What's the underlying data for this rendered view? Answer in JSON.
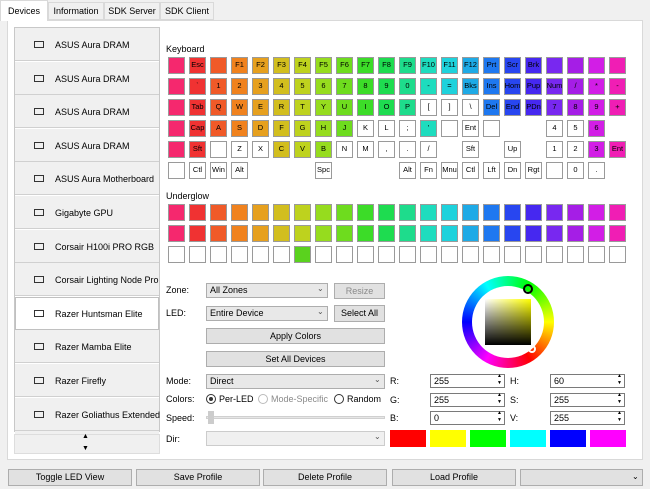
{
  "tabs": [
    "Devices",
    "Information",
    "SDK Server",
    "SDK Client"
  ],
  "devices": [
    {
      "name": "ASUS Aura DRAM"
    },
    {
      "name": "ASUS Aura DRAM"
    },
    {
      "name": "ASUS Aura DRAM"
    },
    {
      "name": "ASUS Aura DRAM"
    },
    {
      "name": "ASUS Aura Motherboard"
    },
    {
      "name": "Gigabyte GPU"
    },
    {
      "name": "Corsair H100i PRO RGB"
    },
    {
      "name": "Corsair Lighting Node Pro"
    },
    {
      "name": "Razer Huntsman Elite",
      "selected": true
    },
    {
      "name": "Razer Mamba Elite"
    },
    {
      "name": "Razer Firefly"
    },
    {
      "name": "Razer Goliathus Extended"
    }
  ],
  "keyboard": {
    "label": "Keyboard",
    "rows": [
      {
        "keys": [
          null,
          "Esc",
          null,
          "F1",
          "F2",
          "F3",
          "F4",
          "F5",
          "F6",
          "F7",
          "F8",
          "F9",
          "F10",
          "F11",
          "F12",
          "Prt",
          "Scr",
          "Brk",
          null,
          null,
          null,
          null
        ],
        "colors": [
          "#f5286e",
          "#f03232",
          "#f05a28",
          "#f0821e",
          "#e6a01e",
          "#d2be1e",
          "#bed21e",
          "#96dc1e",
          "#6edc1e",
          "#3cdc28",
          "#1edc50",
          "#1edc8c",
          "#1edcbe",
          "#1ed2dc",
          "#1eaae6",
          "#1e78f0",
          "#2846f0",
          "#4628f0",
          "#7828f0",
          "#a51ee6",
          "#d21ee6",
          "#f01eb4"
        ]
      },
      {
        "keys": [
          null,
          "`",
          "1",
          "2",
          "3",
          "4",
          "5",
          "6",
          "7",
          "8",
          "9",
          "0",
          "-",
          "=",
          "Bks",
          "Ins",
          "Hom",
          "Pup",
          "Num",
          "/",
          "*",
          "-"
        ],
        "colors": [
          "#f5286e",
          "#f03232",
          "#f05a28",
          "#f0821e",
          "#e6a01e",
          "#d2be1e",
          "#bed21e",
          "#96dc1e",
          "#6edc1e",
          "#3cdc28",
          "#1edc50",
          "#1edc8c",
          "#1edcbe",
          "#1ed2dc",
          "#1eaae6",
          "#1e78f0",
          "#2846f0",
          "#4628f0",
          "#7828f0",
          "#a51ee6",
          "#d21ee6",
          "#f01eb4"
        ]
      },
      {
        "keys": [
          null,
          "Tab",
          "Q",
          "W",
          "E",
          "R",
          "T",
          "Y",
          "U",
          "I",
          "O",
          "P",
          "[",
          "]",
          "\\",
          "Del",
          "End",
          "PDn",
          "7",
          "8",
          "9",
          "+"
        ],
        "colors": [
          "#f5286e",
          "#f03232",
          "#f05a28",
          "#f0821e",
          "#e6a01e",
          "#d2be1e",
          "#bed21e",
          "#96dc1e",
          "#6edc1e",
          "#3cdc28",
          "#1edc50",
          "#1edc8c",
          "#ffffff",
          "#ffffff",
          "#ffffff",
          "#1e78f0",
          "#2846f0",
          "#4628f0",
          "#7828f0",
          "#a51ee6",
          "#d21ee6",
          "#f01eb4"
        ]
      },
      {
        "keys": [
          null,
          "Cap",
          "A",
          "S",
          "D",
          "F",
          "G",
          "H",
          "J",
          "K",
          "L",
          ";",
          "'",
          null,
          "Ent",
          null,
          null,
          null,
          "4",
          "5",
          "6",
          null
        ],
        "colors": [
          "#f5286e",
          "#f03232",
          "#f05a28",
          "#f0821e",
          "#e6a01e",
          "#d2be1e",
          "#bed21e",
          "#96dc1e",
          "#6edc1e",
          "#ffffff",
          "#ffffff",
          "#ffffff",
          "#1edcbe",
          "#ffffff",
          "#ffffff",
          "#ffffff",
          null,
          null,
          "#ffffff",
          "#ffffff",
          "#d21ee6",
          null
        ]
      },
      {
        "keys": [
          null,
          "Sft",
          null,
          "Z",
          "X",
          "C",
          "V",
          "B",
          "N",
          "M",
          ",",
          ".",
          "/",
          null,
          "Sft",
          null,
          "Up",
          null,
          "1",
          "2",
          "3",
          "Ent"
        ],
        "colors": [
          "#f5286e",
          "#f03232",
          "#ffffff",
          "#ffffff",
          "#ffffff",
          "#d2be1e",
          "#bed21e",
          "#96dc1e",
          "#ffffff",
          "#ffffff",
          "#ffffff",
          "#ffffff",
          "#ffffff",
          null,
          "#ffffff",
          null,
          "#ffffff",
          null,
          "#ffffff",
          "#ffffff",
          "#d21ee6",
          "#f01eb4"
        ]
      },
      {
        "keys": [
          null,
          "Ctl",
          "Win",
          "Alt",
          null,
          null,
          null,
          "Spc",
          null,
          null,
          null,
          "Alt",
          "Fn",
          "Mnu",
          "Ctl",
          "Lft",
          "Dn",
          "Rgt",
          null,
          "0",
          ".",
          null
        ],
        "colors": [
          "#ffffff",
          "#ffffff",
          "#ffffff",
          "#ffffff",
          null,
          null,
          null,
          "#ffffff",
          null,
          null,
          null,
          "#ffffff",
          "#ffffff",
          "#ffffff",
          "#ffffff",
          "#ffffff",
          "#ffffff",
          "#ffffff",
          "#ffffff",
          "#ffffff",
          "#ffffff",
          null
        ]
      }
    ]
  },
  "underglow": {
    "label": "Underglow",
    "rows": [
      {
        "colors": [
          "#f5286e",
          "#f03232",
          "#f05a28",
          "#f0821e",
          "#e6a01e",
          "#d2be1e",
          "#bed21e",
          "#96dc1e",
          "#6edc1e",
          "#3cdc28",
          "#1edc50",
          "#1edc8c",
          "#1edcbe",
          "#1ed2dc",
          "#1eaae6",
          "#1e78f0",
          "#2846f0",
          "#4628f0",
          "#7828f0",
          "#a51ee6",
          "#d21ee6",
          "#f01eb4"
        ]
      },
      {
        "colors": [
          "#f5286e",
          "#f03232",
          "#f05a28",
          "#f0821e",
          "#e6a01e",
          "#d2be1e",
          "#bed21e",
          "#96dc1e",
          "#6edc1e",
          "#3cdc28",
          "#1edc50",
          "#1edc8c",
          "#1edcbe",
          "#1ed2dc",
          "#1eaae6",
          "#1e78f0",
          "#2846f0",
          "#4628f0",
          "#7828f0",
          "#a51ee6",
          "#d21ee6",
          "#f01eb4"
        ]
      },
      {
        "colors": [
          "#ffffff",
          "#ffffff",
          "#ffffff",
          "#ffffff",
          "#ffffff",
          "#ffffff",
          "#5ad21e",
          "#ffffff",
          "#ffffff",
          "#ffffff",
          "#ffffff",
          "#ffffff",
          "#ffffff",
          "#ffffff",
          "#ffffff",
          "#ffffff",
          "#ffffff",
          "#ffffff",
          "#ffffff",
          "#ffffff",
          "#ffffff",
          "#ffffff"
        ]
      }
    ]
  },
  "controls": {
    "zone": {
      "label": "Zone:",
      "value": "All Zones"
    },
    "resize": "Resize",
    "led": {
      "label": "LED:",
      "value": "Entire Device"
    },
    "select_all": "Select All",
    "apply_colors": "Apply Colors",
    "set_all_devices": "Set All Devices",
    "mode": {
      "label": "Mode:",
      "value": "Direct"
    },
    "colors": {
      "label": "Colors:",
      "options": [
        {
          "label": "Per-LED",
          "checked": true
        },
        {
          "label": "Mode-Specific",
          "enabled": false
        },
        {
          "label": "Random"
        }
      ]
    },
    "speed": "Speed:",
    "dir": "Dir:"
  },
  "color_values": [
    {
      "label": "R:",
      "value": 255
    },
    {
      "label": "G:",
      "value": 255
    },
    {
      "label": "B:",
      "value": 0
    },
    {
      "label": "H:",
      "value": 60
    },
    {
      "label": "S:",
      "value": 255
    },
    {
      "label": "V:",
      "value": 255
    }
  ],
  "swatches": [
    "#ff0000",
    "#ffff00",
    "#00ff00",
    "#00ffff",
    "#0000ff",
    "#ff00ff"
  ],
  "footer_buttons": [
    "Toggle LED View",
    "Save Profile",
    "Delete Profile",
    "Load Profile"
  ]
}
